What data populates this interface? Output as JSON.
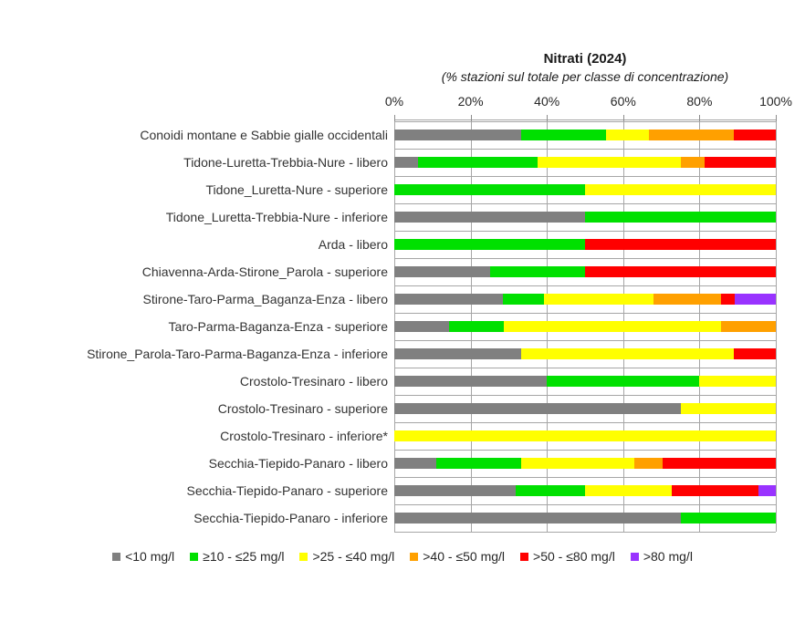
{
  "chart_data": {
    "type": "bar",
    "orientation": "horizontal",
    "stacked": true,
    "title": "Nitrati (2024)",
    "subtitle": "(% stazioni sul totale per classe di concentrazione)",
    "value_axis": {
      "position": "top",
      "min": 0,
      "max": 100,
      "tick_labels": [
        "0%",
        "20%",
        "40%",
        "60%",
        "80%",
        "100%"
      ],
      "tick_values": [
        0,
        20,
        40,
        60,
        80,
        100
      ]
    },
    "grid": "on",
    "legend_position": "bottom",
    "categories": [
      "Conoidi montane e Sabbie gialle occidentali",
      "Tidone-Luretta-Trebbia-Nure - libero",
      "Tidone_Luretta-Nure - superiore",
      "Tidone_Luretta-Trebbia-Nure - inferiore",
      "Arda - libero",
      "Chiavenna-Arda-Stirone_Parola - superiore",
      "Stirone-Taro-Parma_Baganza-Enza - libero",
      "Taro-Parma-Baganza-Enza - superiore",
      "Stirone_Parola-Taro-Parma-Baganza-Enza - inferiore",
      "Crostolo-Tresinaro - libero",
      "Crostolo-Tresinaro - superiore",
      "Crostolo-Tresinaro - inferiore*",
      "Secchia-Tiepido-Panaro - libero",
      "Secchia-Tiepido-Panaro - superiore",
      "Secchia-Tiepido-Panaro - inferiore"
    ],
    "series": [
      {
        "name": "<10 mg/l",
        "color": "#808080",
        "values": [
          33.3,
          6.25,
          0,
          50,
          0,
          25,
          28.6,
          14.3,
          33.3,
          40,
          75,
          0,
          11.1,
          31.8,
          75
        ]
      },
      {
        "name": "≥10 - ≤25 mg/l",
        "color": "#00E000",
        "values": [
          22.2,
          31.25,
          50,
          50,
          50,
          25,
          10.7,
          14.3,
          0,
          40,
          0,
          0,
          22.2,
          18.2,
          25
        ]
      },
      {
        "name": ">25 - ≤40 mg/l",
        "color": "#FFFF00",
        "values": [
          11.1,
          37.5,
          50,
          0,
          0,
          0,
          28.6,
          57.1,
          55.6,
          20,
          25,
          100,
          29.6,
          22.7,
          0
        ]
      },
      {
        "name": ">40 - ≤50 mg/l",
        "color": "#FFA000",
        "values": [
          22.2,
          6.25,
          0,
          0,
          0,
          0,
          17.9,
          14.3,
          0,
          0,
          0,
          0,
          7.4,
          0,
          0
        ]
      },
      {
        "name": ">50 - ≤80 mg/l",
        "color": "#FF0000",
        "values": [
          11.1,
          18.75,
          0,
          0,
          50,
          50,
          3.6,
          0,
          11.1,
          0,
          0,
          0,
          29.6,
          22.8,
          0
        ]
      },
      {
        "name": ">80 mg/l",
        "color": "#9933FF",
        "values": [
          0,
          0,
          0,
          0,
          0,
          0,
          10.7,
          0,
          0,
          0,
          0,
          0,
          0,
          4.5,
          0
        ]
      }
    ]
  },
  "layout_colors": {
    "grid": "#A6A6A6",
    "text": "#333333",
    "background": "#FFFFFF"
  }
}
